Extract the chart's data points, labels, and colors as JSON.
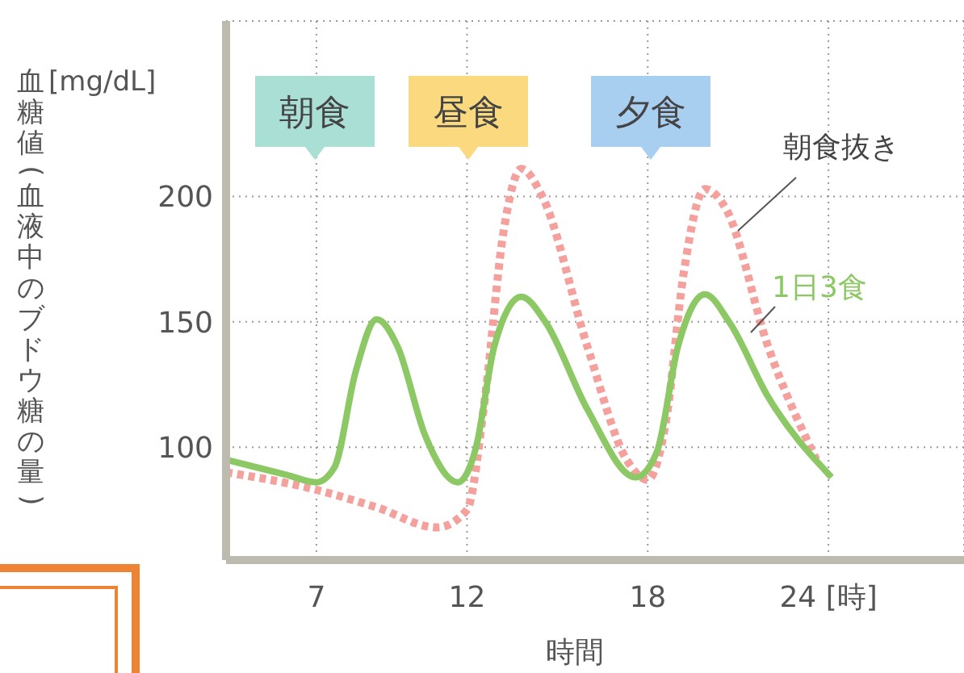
{
  "chart_data": {
    "type": "line",
    "xlabel": "時間",
    "ylabel": "血糖値(血液中のブドウ糖の量)",
    "annotations": [
      "[mg/dL]",
      "朝食",
      "昼食",
      "夕食"
    ],
    "xlim": [
      4,
      28.5
    ],
    "xticks": [
      7,
      12,
      18,
      {
        "value": 24,
        "label": "24 [時]"
      }
    ],
    "ylim": [
      55,
      270
    ],
    "yticks": [
      100,
      150,
      200
    ],
    "grid": true,
    "marker": "none",
    "series": [
      {
        "name": "朝食抜き",
        "color": "#f4a09c",
        "line_style": "dotted",
        "x": [
          4,
          7,
          9,
          11,
          12,
          12.6,
          13.2,
          13.8,
          14.5,
          16,
          17.3,
          18,
          18.6,
          19.2,
          19.9,
          20.6,
          22,
          23.6
        ],
        "values": [
          90,
          83,
          76,
          68,
          75,
          120,
          185,
          211,
          200,
          140,
          95,
          87,
          110,
          170,
          203,
          195,
          140,
          95
        ]
      },
      {
        "name": "1日3食",
        "color": "#8cc864",
        "line_style": "solid",
        "x": [
          4,
          6,
          7,
          7.6,
          8.3,
          9,
          9.7,
          10.6,
          11.7,
          12.3,
          12.9,
          13.8,
          14.6,
          16,
          17.6,
          18.3,
          19,
          19.9,
          20.7,
          22,
          24.1
        ],
        "values": [
          95,
          89,
          86,
          92,
          130,
          151,
          140,
          105,
          86,
          100,
          140,
          160,
          150,
          115,
          88,
          98,
          140,
          161,
          150,
          120,
          88
        ]
      }
    ]
  }
}
